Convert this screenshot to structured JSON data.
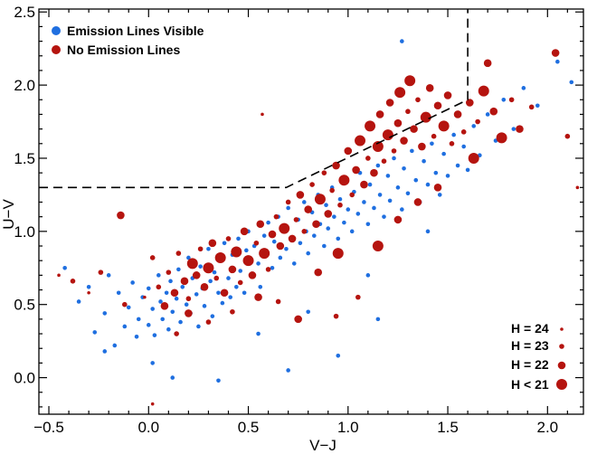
{
  "chart_data": {
    "type": "scatter",
    "xlabel": "V−J",
    "ylabel": "U−V",
    "xlim": [
      -0.55,
      2.18
    ],
    "ylim": [
      -0.25,
      2.52
    ],
    "xticks": [
      -0.5,
      0.0,
      0.5,
      1.0,
      1.5,
      2.0
    ],
    "xtick_labels": [
      "−0.5",
      "0.0",
      "0.5",
      "1.0",
      "1.5",
      "2.0"
    ],
    "yticks": [
      0.0,
      0.5,
      1.0,
      1.5,
      2.0,
      2.5
    ],
    "ytick_labels": [
      "0.0",
      "0.5",
      "1.0",
      "1.5",
      "2.0",
      "2.5"
    ],
    "grid": false,
    "legend": {
      "position": "top-left",
      "entries": [
        {
          "label": "Emission Lines Visible",
          "color": "#1f6fe0"
        },
        {
          "label": "No Emission Lines",
          "color": "#b5140f"
        }
      ]
    },
    "size_legend": {
      "position": "bottom-right",
      "entries": [
        {
          "label": "H = 24",
          "magnitude": 24
        },
        {
          "label": "H = 23",
          "magnitude": 23
        },
        {
          "label": "H = 22",
          "magnitude": 22
        },
        {
          "label": "H < 21",
          "magnitude": 21
        }
      ]
    },
    "quiescent_boundary": {
      "style": "dashed",
      "points": [
        [
          -0.55,
          1.3
        ],
        [
          0.69,
          1.3
        ],
        [
          1.6,
          1.9
        ],
        [
          1.6,
          2.52
        ]
      ]
    },
    "series": [
      {
        "name": "Emission Lines Visible",
        "color": "#1f6fe0",
        "points": [
          [
            -0.42,
            0.75
          ],
          [
            -0.35,
            0.52
          ],
          [
            -0.3,
            0.62
          ],
          [
            -0.27,
            0.31
          ],
          [
            -0.22,
            0.44
          ],
          [
            -0.2,
            0.7
          ],
          [
            -0.17,
            0.22
          ],
          [
            -0.15,
            0.58
          ],
          [
            -0.12,
            0.35
          ],
          [
            -0.1,
            0.48
          ],
          [
            -0.08,
            0.65
          ],
          [
            -0.06,
            0.28
          ],
          [
            -0.05,
            0.4
          ],
          [
            -0.03,
            0.55
          ],
          [
            0.0,
            0.36
          ],
          [
            0.0,
            0.61
          ],
          [
            0.02,
            0.47
          ],
          [
            0.03,
            0.29
          ],
          [
            0.05,
            0.7
          ],
          [
            0.06,
            0.52
          ],
          [
            0.07,
            0.4
          ],
          [
            0.09,
            0.58
          ],
          [
            0.1,
            0.33
          ],
          [
            0.11,
            0.66
          ],
          [
            0.12,
            0.45
          ],
          [
            0.14,
            0.54
          ],
          [
            0.15,
            0.74
          ],
          [
            0.16,
            0.38
          ],
          [
            0.17,
            0.62
          ],
          [
            0.19,
            0.5
          ],
          [
            0.2,
            0.82
          ],
          [
            0.21,
            0.44
          ],
          [
            0.22,
            0.68
          ],
          [
            0.24,
            0.57
          ],
          [
            0.25,
            0.35
          ],
          [
            0.26,
            0.76
          ],
          [
            0.27,
            0.61
          ],
          [
            0.28,
            0.49
          ],
          [
            0.3,
            0.88
          ],
          [
            0.31,
            0.66
          ],
          [
            0.32,
            0.42
          ],
          [
            0.33,
            0.72
          ],
          [
            0.35,
            0.58
          ],
          [
            0.36,
            0.8
          ],
          [
            0.37,
            0.51
          ],
          [
            0.38,
            0.92
          ],
          [
            0.4,
            0.68
          ],
          [
            0.41,
            0.55
          ],
          [
            0.42,
            0.84
          ],
          [
            0.44,
            0.62
          ],
          [
            0.45,
            0.95
          ],
          [
            0.46,
            0.73
          ],
          [
            0.48,
            0.58
          ],
          [
            0.49,
            0.87
          ],
          [
            0.5,
            1.0
          ],
          [
            0.52,
            0.69
          ],
          [
            0.53,
            0.9
          ],
          [
            0.55,
            0.78
          ],
          [
            0.56,
            0.62
          ],
          [
            0.58,
            0.97
          ],
          [
            0.59,
            0.84
          ],
          [
            0.6,
            1.06
          ],
          [
            0.62,
            0.75
          ],
          [
            0.63,
            0.93
          ],
          [
            0.65,
            1.1
          ],
          [
            0.66,
            0.82
          ],
          [
            0.68,
            1.01
          ],
          [
            0.69,
            0.88
          ],
          [
            0.7,
            1.16
          ],
          [
            0.72,
            0.95
          ],
          [
            0.73,
            0.78
          ],
          [
            0.75,
            1.08
          ],
          [
            0.76,
            0.92
          ],
          [
            0.78,
            1.2
          ],
          [
            0.79,
            1.0
          ],
          [
            0.8,
            0.85
          ],
          [
            0.82,
            1.13
          ],
          [
            0.83,
            0.97
          ],
          [
            0.85,
            1.25
          ],
          [
            0.86,
            1.05
          ],
          [
            0.88,
            0.9
          ],
          [
            0.89,
            1.18
          ],
          [
            0.9,
            1.02
          ],
          [
            0.92,
            1.3
          ],
          [
            0.93,
            1.1
          ],
          [
            0.95,
            0.95
          ],
          [
            0.96,
            1.22
          ],
          [
            0.98,
            1.06
          ],
          [
            0.99,
            1.35
          ],
          [
            1.0,
            1.15
          ],
          [
            1.02,
            1.0
          ],
          [
            1.03,
            1.27
          ],
          [
            1.05,
            1.12
          ],
          [
            1.06,
            1.4
          ],
          [
            1.08,
            1.2
          ],
          [
            1.1,
            1.05
          ],
          [
            1.11,
            1.32
          ],
          [
            1.13,
            1.16
          ],
          [
            1.15,
            1.45
          ],
          [
            1.16,
            1.25
          ],
          [
            1.18,
            1.1
          ],
          [
            1.2,
            1.38
          ],
          [
            1.21,
            1.21
          ],
          [
            1.23,
            1.5
          ],
          [
            1.25,
            1.3
          ],
          [
            1.27,
            1.15
          ],
          [
            1.28,
            1.43
          ],
          [
            1.3,
            1.26
          ],
          [
            1.32,
            1.55
          ],
          [
            1.34,
            1.35
          ],
          [
            1.36,
            1.2
          ],
          [
            1.38,
            1.48
          ],
          [
            1.4,
            1.32
          ],
          [
            1.42,
            1.6
          ],
          [
            1.44,
            1.4
          ],
          [
            1.46,
            1.25
          ],
          [
            1.48,
            1.53
          ],
          [
            1.5,
            1.38
          ],
          [
            1.53,
            1.66
          ],
          [
            1.55,
            1.45
          ],
          [
            1.58,
            1.58
          ],
          [
            1.6,
            1.42
          ],
          [
            1.63,
            1.72
          ],
          [
            1.66,
            1.52
          ],
          [
            1.7,
            1.8
          ],
          [
            1.74,
            1.62
          ],
          [
            1.78,
            1.9
          ],
          [
            1.83,
            1.7
          ],
          [
            1.88,
            1.98
          ],
          [
            1.95,
            1.86
          ],
          [
            2.05,
            2.16
          ],
          [
            2.12,
            2.02
          ],
          [
            1.27,
            2.3
          ],
          [
            0.12,
            0.0
          ],
          [
            0.35,
            -0.02
          ],
          [
            0.7,
            0.05
          ],
          [
            0.95,
            0.15
          ],
          [
            1.15,
            0.4
          ],
          [
            0.02,
            0.1
          ],
          [
            -0.22,
            0.18
          ],
          [
            0.55,
            0.3
          ],
          [
            0.8,
            0.45
          ],
          [
            1.1,
            0.7
          ],
          [
            1.4,
            1.0
          ]
        ]
      },
      {
        "name": "No Emission Lines",
        "color": "#b5140f",
        "points": [
          [
            -0.45,
            0.7,
            24
          ],
          [
            -0.38,
            0.66,
            23
          ],
          [
            -0.3,
            0.58,
            24
          ],
          [
            -0.24,
            0.72,
            23
          ],
          [
            -0.14,
            1.11,
            22
          ],
          [
            -0.12,
            0.5,
            23
          ],
          [
            -0.02,
            0.55,
            24
          ],
          [
            0.02,
            0.82,
            23
          ],
          [
            0.05,
            0.62,
            23
          ],
          [
            0.08,
            0.49,
            22
          ],
          [
            0.1,
            0.72,
            23
          ],
          [
            0.13,
            0.58,
            22
          ],
          [
            0.15,
            0.85,
            23
          ],
          [
            0.18,
            0.66,
            22
          ],
          [
            0.2,
            0.54,
            23
          ],
          [
            0.22,
            0.78,
            21
          ],
          [
            0.24,
            0.7,
            22
          ],
          [
            0.26,
            0.88,
            23
          ],
          [
            0.28,
            0.62,
            22
          ],
          [
            0.3,
            0.75,
            21
          ],
          [
            0.32,
            0.92,
            22
          ],
          [
            0.34,
            0.68,
            23
          ],
          [
            0.36,
            0.82,
            21
          ],
          [
            0.38,
            0.58,
            22
          ],
          [
            0.4,
            0.95,
            23
          ],
          [
            0.42,
            0.74,
            22
          ],
          [
            0.44,
            0.86,
            21
          ],
          [
            0.46,
            0.65,
            23
          ],
          [
            0.48,
            1.0,
            22
          ],
          [
            0.5,
            0.8,
            21
          ],
          [
            0.52,
            0.7,
            22
          ],
          [
            0.54,
            0.92,
            23
          ],
          [
            0.56,
            1.05,
            22
          ],
          [
            0.58,
            0.85,
            21
          ],
          [
            0.6,
            0.74,
            23
          ],
          [
            0.62,
            0.98,
            22
          ],
          [
            0.64,
            1.1,
            23
          ],
          [
            0.66,
            0.9,
            22
          ],
          [
            0.68,
            1.02,
            21
          ],
          [
            0.7,
            1.2,
            23
          ],
          [
            0.72,
            0.95,
            22
          ],
          [
            0.74,
            1.08,
            23
          ],
          [
            0.76,
            1.25,
            22
          ],
          [
            0.78,
            1.0,
            23
          ],
          [
            0.8,
            1.15,
            22
          ],
          [
            0.82,
            1.32,
            23
          ],
          [
            0.84,
            1.05,
            22
          ],
          [
            0.86,
            1.22,
            21
          ],
          [
            0.88,
            1.4,
            23
          ],
          [
            0.9,
            1.12,
            22
          ],
          [
            0.92,
            1.28,
            23
          ],
          [
            0.94,
            1.45,
            22
          ],
          [
            0.96,
            1.18,
            23
          ],
          [
            0.98,
            1.35,
            21
          ],
          [
            1.0,
            1.55,
            22
          ],
          [
            1.02,
            1.25,
            23
          ],
          [
            1.04,
            1.42,
            22
          ],
          [
            1.06,
            1.62,
            21
          ],
          [
            1.08,
            1.32,
            22
          ],
          [
            1.1,
            1.5,
            23
          ],
          [
            1.11,
            1.72,
            21
          ],
          [
            1.13,
            1.4,
            22
          ],
          [
            1.15,
            1.58,
            21
          ],
          [
            1.16,
            1.8,
            22
          ],
          [
            1.18,
            1.48,
            23
          ],
          [
            1.2,
            1.66,
            21
          ],
          [
            1.21,
            1.88,
            22
          ],
          [
            1.23,
            1.55,
            23
          ],
          [
            1.25,
            1.74,
            22
          ],
          [
            1.26,
            1.95,
            21
          ],
          [
            1.28,
            1.62,
            22
          ],
          [
            1.3,
            1.82,
            23
          ],
          [
            1.31,
            2.03,
            21
          ],
          [
            1.33,
            1.7,
            22
          ],
          [
            1.35,
            1.9,
            23
          ],
          [
            1.37,
            1.58,
            22
          ],
          [
            1.39,
            1.78,
            21
          ],
          [
            1.41,
            1.98,
            22
          ],
          [
            1.43,
            1.65,
            23
          ],
          [
            1.45,
            1.86,
            22
          ],
          [
            1.48,
            1.72,
            21
          ],
          [
            1.5,
            1.93,
            22
          ],
          [
            1.52,
            1.6,
            23
          ],
          [
            1.55,
            1.8,
            22
          ],
          [
            1.58,
            1.68,
            23
          ],
          [
            1.61,
            1.88,
            22
          ],
          [
            1.65,
            1.75,
            23
          ],
          [
            1.68,
            1.96,
            21
          ],
          [
            1.7,
            2.15,
            22
          ],
          [
            1.73,
            1.82,
            22
          ],
          [
            1.77,
            1.64,
            21
          ],
          [
            1.82,
            1.9,
            23
          ],
          [
            1.86,
            1.7,
            22
          ],
          [
            1.92,
            1.85,
            23
          ],
          [
            2.04,
            2.22,
            22
          ],
          [
            2.15,
            1.3,
            24
          ],
          [
            2.1,
            1.65,
            23
          ],
          [
            0.57,
            1.8,
            24
          ],
          [
            0.02,
            -0.18,
            24
          ],
          [
            0.14,
            0.3,
            23
          ],
          [
            0.42,
            0.45,
            23
          ],
          [
            0.75,
            0.4,
            22
          ],
          [
            0.94,
            0.42,
            23
          ],
          [
            0.95,
            0.85,
            21
          ],
          [
            1.25,
            1.08,
            22
          ],
          [
            1.05,
            0.55,
            23
          ],
          [
            1.35,
            1.2,
            22
          ],
          [
            0.85,
            0.72,
            22
          ],
          [
            0.65,
            0.52,
            23
          ],
          [
            1.15,
            0.9,
            21
          ],
          [
            1.45,
            1.3,
            22
          ],
          [
            1.63,
            1.5,
            21
          ],
          [
            0.55,
            0.55,
            22
          ],
          [
            0.3,
            0.38,
            23
          ],
          [
            0.2,
            0.44,
            22
          ]
        ]
      }
    ]
  }
}
